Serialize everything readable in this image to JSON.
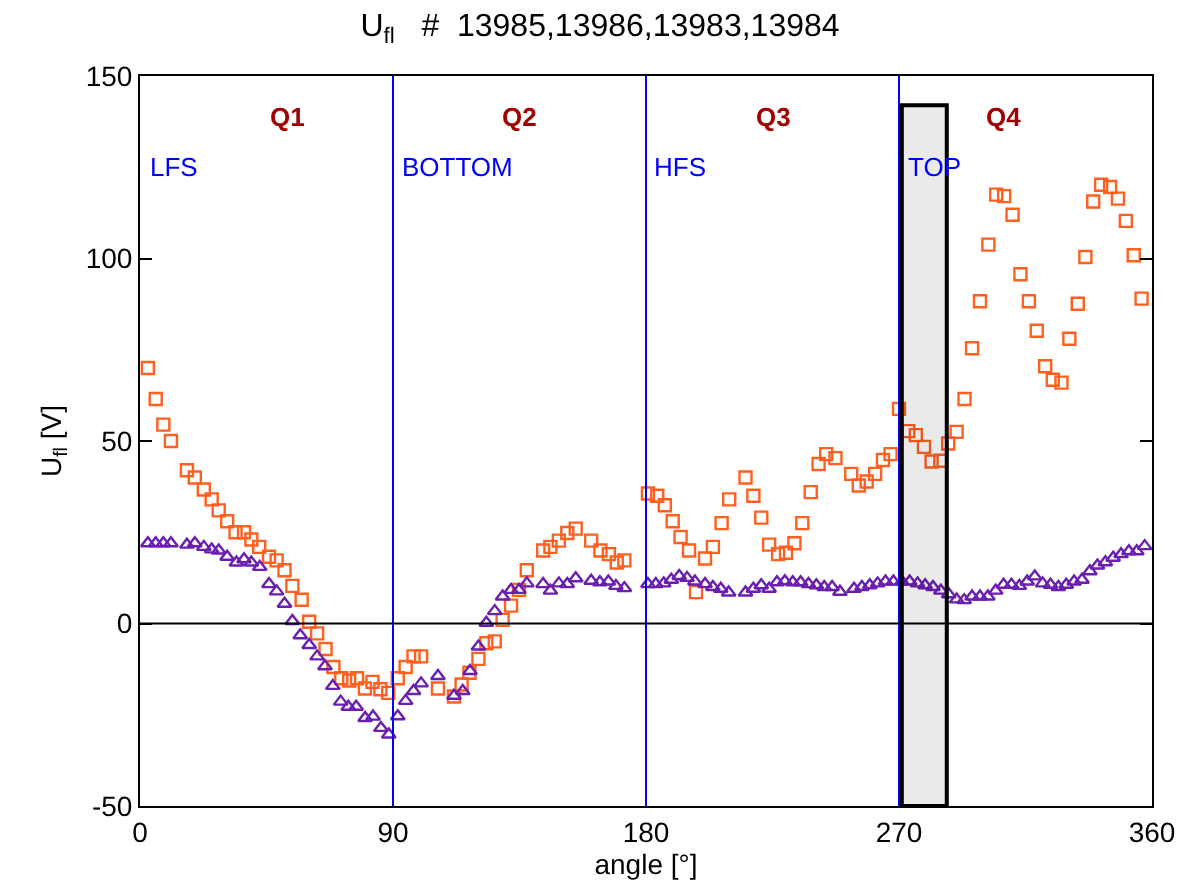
{
  "chart_data": {
    "type": "scatter",
    "title": "U$_{fl}$   #  13985,13986,13983,13984",
    "xlabel": "angle [°]",
    "ylabel": "U$_{fl}$ [V]",
    "xlim": [
      0,
      360
    ],
    "xticks": [
      0,
      90,
      180,
      270,
      360
    ],
    "ylim": [
      -50,
      150
    ],
    "yticks": [
      -50,
      0,
      50,
      100,
      150
    ],
    "grid": false,
    "series": [
      {
        "color": "#ff6020",
        "marker": "square",
        "x": [
          2.8,
          5.6,
          8.3,
          11,
          16.7,
          19.5,
          22.7,
          25.5,
          28,
          31,
          34,
          37,
          39.6,
          42.4,
          45.9,
          48.6,
          51.4,
          54.2,
          57.5,
          60.2,
          63,
          66,
          68.8,
          71.6,
          74.4,
          77.2,
          80,
          82.7,
          85.5,
          88.3,
          91.7,
          94.5,
          97.3,
          100,
          106,
          111.7,
          114.4,
          117.2,
          120.4,
          123.2,
          126.2,
          129,
          132,
          134.8,
          137.6,
          143.4,
          146,
          149,
          152,
          155,
          160.5,
          163.8,
          166.8,
          169.6,
          172.3,
          180.7,
          184,
          186.7,
          189.5,
          192.3,
          195.3,
          197.8,
          201,
          203.8,
          206.9,
          209.6,
          215.4,
          218.2,
          221,
          223.8,
          227,
          229.8,
          232.8,
          235.6,
          238.6,
          241.4,
          244.1,
          247.4,
          253,
          255.7,
          258.5,
          261.5,
          264.3,
          267,
          270,
          273.3,
          276,
          278.9,
          281.6,
          284.7,
          287.5,
          290.5,
          293.3,
          296,
          298.8,
          301.8,
          304.6,
          307.4,
          310.4,
          313.2,
          316.2,
          319,
          322,
          324.7,
          327.8,
          330.6,
          333.6,
          336.3,
          339.1,
          341.9,
          345.1,
          347.9,
          350.7,
          353.5,
          356.3
        ],
        "values": [
          70,
          61.5,
          54.5,
          50,
          42,
          40,
          36.7,
          34,
          31,
          28,
          25,
          25,
          23,
          21,
          18.3,
          17.3,
          14.6,
          10.3,
          6.5,
          0.5,
          -2.7,
          -7,
          -11.9,
          -15,
          -15.6,
          -15,
          -17.8,
          -16,
          -18,
          -19,
          -15,
          -11.9,
          -9,
          -9,
          -17.8,
          -20,
          -16.7,
          -13.5,
          -9.7,
          -5.4,
          -4.9,
          1,
          4.9,
          9.2,
          14.6,
          20,
          21,
          22.7,
          24.8,
          26,
          22.7,
          20,
          19,
          16.7,
          17.3,
          35.6,
          35,
          32.4,
          28,
          23.7,
          20,
          8.6,
          17.8,
          21,
          27.5,
          34,
          40,
          35,
          29,
          21.6,
          19,
          19.4,
          22,
          27.5,
          36,
          43.7,
          46.4,
          45.3,
          41,
          37.8,
          38.9,
          41,
          44.8,
          46.4,
          58.8,
          52.7,
          51.6,
          48.4,
          44.4,
          44.6,
          49.3,
          52.5,
          61.5,
          75.4,
          88.3,
          103.8,
          117.5,
          117.1,
          112,
          95.7,
          88.3,
          80.2,
          70.5,
          66.8,
          66,
          78,
          87.6,
          100.4,
          115.6,
          120.2,
          119.6,
          116.4,
          110.3,
          100.9,
          89
        ]
      },
      {
        "color": "#6a1fb0",
        "marker": "triangle",
        "x": [
          2.8,
          5.6,
          8.3,
          11,
          16.7,
          19.5,
          22.7,
          25.5,
          28,
          31,
          34.3,
          37,
          39.6,
          42.6,
          45.9,
          48.6,
          51.4,
          54.2,
          57,
          60.2,
          63,
          65.8,
          68.6,
          71.4,
          74.1,
          76.9,
          80.1,
          82.9,
          85.7,
          88.5,
          91.7,
          94.5,
          97.3,
          100,
          106,
          111.7,
          114.8,
          117.4,
          120.4,
          123.2,
          126.2,
          129,
          132,
          134.8,
          137.6,
          143.4,
          146,
          149,
          152,
          155,
          160.5,
          163.6,
          166.6,
          169.3,
          172.3,
          180.7,
          183.5,
          186.3,
          189,
          191.8,
          194.6,
          197.4,
          201,
          203.8,
          206.6,
          209.4,
          215.4,
          218.2,
          221,
          223.8,
          226.6,
          229.4,
          232.2,
          235,
          237.8,
          240.6,
          243.4,
          246.2,
          249,
          254,
          256.8,
          259.6,
          262.4,
          265.2,
          268,
          271,
          273.8,
          276.6,
          279.3,
          282.1,
          284.9,
          287.7,
          290.5,
          293.2,
          296,
          298.8,
          301.6,
          304.4,
          307.2,
          310,
          312.8,
          315.6,
          318.3,
          321.1,
          323.9,
          326.7,
          329.5,
          332.3,
          335.1,
          337.9,
          340.6,
          343.4,
          346.2,
          349,
          351.8,
          354.6,
          357.4
        ],
        "values": [
          22,
          22,
          22,
          22,
          21.6,
          22,
          21,
          20.3,
          20,
          18.3,
          16.7,
          17.6,
          16.7,
          15.5,
          10.8,
          8.8,
          5.4,
          0.7,
          -3.2,
          -5.9,
          -9,
          -11.7,
          -17.1,
          -21.4,
          -22.8,
          -22.8,
          -25.9,
          -25.5,
          -28.6,
          -30.4,
          -25.4,
          -21.2,
          -18.5,
          -16.4,
          -14.4,
          -19.8,
          -18.5,
          -13,
          -6.3,
          0.2,
          3.4,
          7.4,
          9.2,
          9.2,
          11,
          10.8,
          9,
          11,
          10.8,
          12.4,
          11.7,
          11.3,
          11.5,
          10.3,
          9.7,
          10.8,
          10.8,
          11,
          12,
          13,
          12.5,
          11.5,
          10.8,
          10,
          9.5,
          8.5,
          8.5,
          9.5,
          10.5,
          9.5,
          11.3,
          11.6,
          11.3,
          11.3,
          10.8,
          10.5,
          10,
          10,
          8.7,
          9.5,
          10,
          10.5,
          11,
          11.5,
          11.5,
          11.5,
          11.5,
          11,
          10.5,
          10,
          9,
          8,
          6.6,
          6.4,
          7.4,
          7.4,
          7.4,
          9,
          10.6,
          10.6,
          10.3,
          11.5,
          12.9,
          11,
          10.6,
          10,
          10.6,
          11.5,
          12,
          14.3,
          15.9,
          16.8,
          18,
          19,
          19.8,
          19.8,
          21.2
        ]
      }
    ],
    "ref_lines": [
      {
        "axis": "x",
        "value": 90,
        "label": "BOTTOM",
        "color": "#0000ff"
      },
      {
        "axis": "x",
        "value": 180,
        "label": "HFS",
        "color": "#0000ff"
      },
      {
        "axis": "x",
        "value": 270,
        "label": "TOP",
        "color": "#0000ff"
      },
      {
        "axis": "y",
        "value": 0,
        "color": "#000000"
      }
    ],
    "bands": [
      {
        "axis": "x",
        "from": 271,
        "to": 287,
        "color": "#000000"
      }
    ],
    "annotations": [
      "Q1",
      "Q2",
      "Q3",
      "Q4",
      "LFS"
    ]
  }
}
